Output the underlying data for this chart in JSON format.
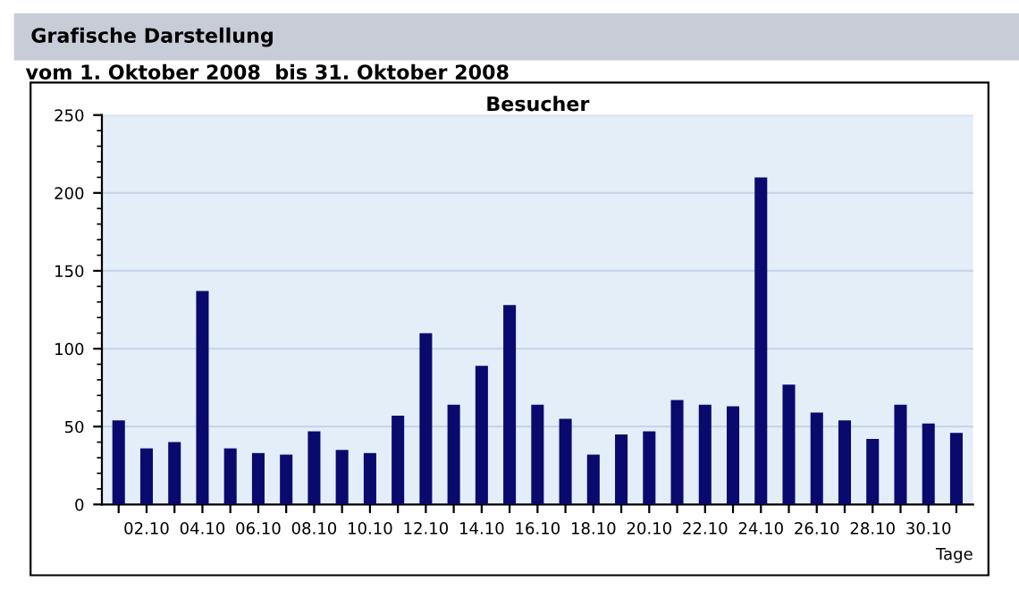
{
  "chart_data": {
    "type": "bar",
    "title": "Grafische Darstellung",
    "subtitle": "vom 1. Oktober 2008  bis 31. Oktober 2008",
    "annotations": [
      "Besucher"
    ],
    "xlabel": "Tage",
    "categories": [
      null,
      "02.10",
      null,
      "04.10",
      null,
      "06.10",
      null,
      "08.10",
      null,
      "10.10",
      null,
      "12.10",
      null,
      "14.10",
      null,
      "16.10",
      null,
      "18.10",
      null,
      "20.10",
      null,
      "22.10",
      null,
      "24.10",
      null,
      "26.10",
      null,
      "28.10",
      null,
      "30.10",
      null
    ],
    "values": [
      54,
      36,
      40,
      137,
      36,
      33,
      32,
      47,
      35,
      33,
      57,
      110,
      64,
      89,
      128,
      64,
      55,
      32,
      45,
      47,
      67,
      64,
      63,
      210,
      77,
      59,
      54,
      42,
      64,
      52,
      46
    ],
    "color": "#0a0a6e",
    "ylim": [
      0,
      250
    ],
    "yticks": [
      0,
      50,
      100,
      150,
      200,
      250
    ],
    "grid": "y"
  }
}
